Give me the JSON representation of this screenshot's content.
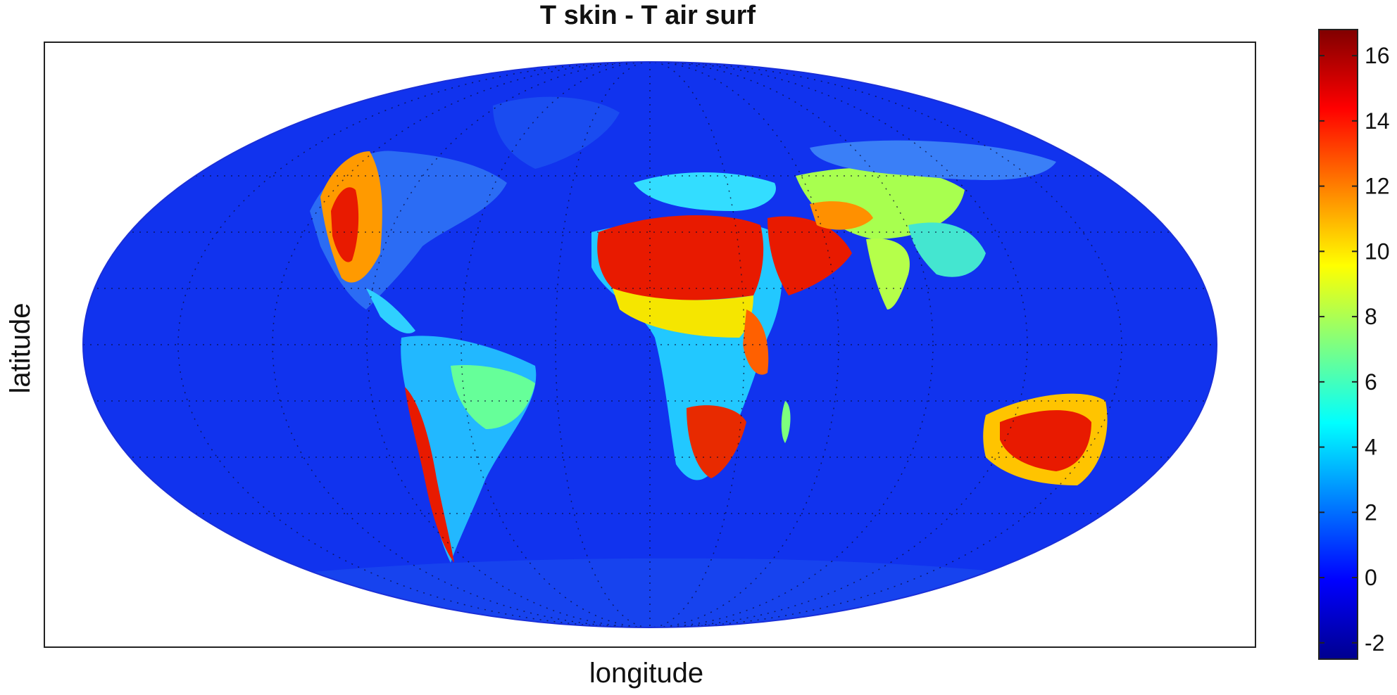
{
  "chart_data": {
    "type": "heatmap",
    "title": "T skin - T air surf",
    "xlabel": "longitude",
    "ylabel": "latitude",
    "projection": "mollweide",
    "colormap": "jet",
    "colorbar": {
      "min": -2.5,
      "max": 16.8,
      "ticks": [
        -2,
        0,
        2,
        4,
        6,
        8,
        10,
        12,
        14,
        16
      ]
    },
    "background_value": 0.5,
    "regions": [
      {
        "name": "Sahara",
        "value": 14.5
      },
      {
        "name": "Arabian Peninsula",
        "value": 14
      },
      {
        "name": "Australia interior",
        "value": 14
      },
      {
        "name": "Southern Africa",
        "value": 14
      },
      {
        "name": "Central Asia",
        "value": 9
      },
      {
        "name": "Western North America",
        "value": 12
      },
      {
        "name": "Andes",
        "value": 13
      },
      {
        "name": "Brazil",
        "value": 5
      },
      {
        "name": "India",
        "value": 8
      },
      {
        "name": "Sahel / East Africa",
        "value": 7
      }
    ]
  }
}
